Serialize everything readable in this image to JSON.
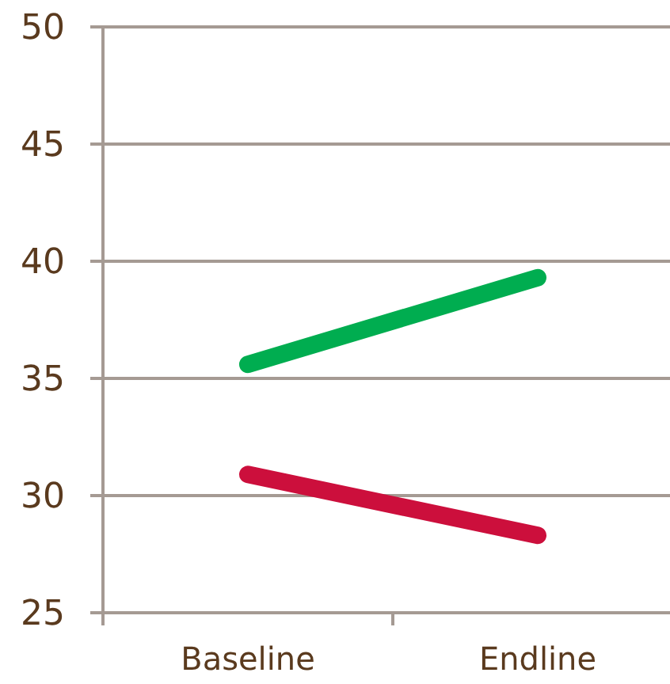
{
  "chart_data": {
    "type": "line",
    "categories": [
      "Baseline",
      "Endline"
    ],
    "series": [
      {
        "color": "#00ad50",
        "values": [
          35.6,
          39.3
        ]
      },
      {
        "color": "#cc0f3c",
        "values": [
          30.9,
          28.3
        ]
      }
    ],
    "ylim": [
      25,
      50
    ],
    "yticks": [
      25,
      30,
      35,
      40,
      45,
      50
    ],
    "grid": "y",
    "marker": "none",
    "line_style": "solid"
  }
}
